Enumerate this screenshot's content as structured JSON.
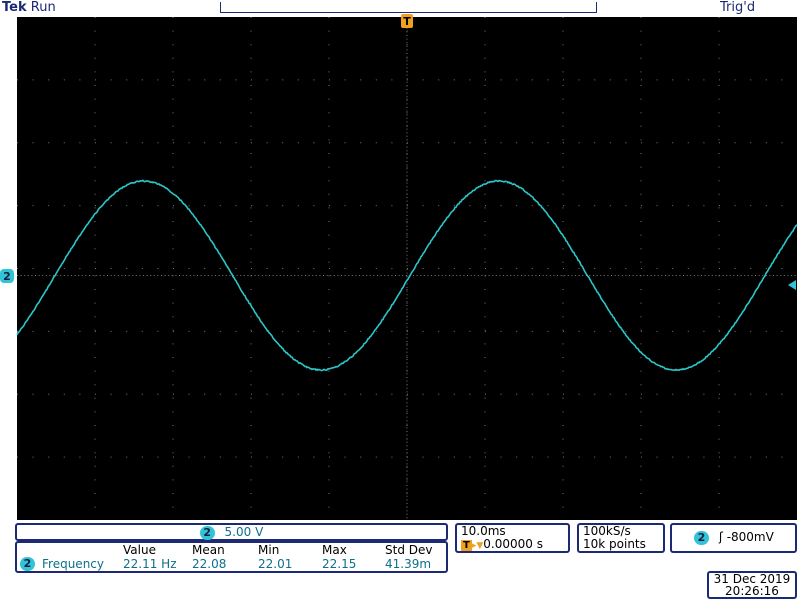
{
  "header": {
    "brand": "Tek",
    "status": "Run",
    "trigger_status": "Trig'd"
  },
  "trigger_marker": "T",
  "channel": {
    "number": "2",
    "scale": "5.00 V"
  },
  "measurement": {
    "columns": [
      "Value",
      "Mean",
      "Min",
      "Max",
      "Std Dev"
    ],
    "channel": "2",
    "name": "Frequency",
    "values": [
      "22.11 Hz",
      "22.08",
      "22.01",
      "22.15",
      "41.39m"
    ]
  },
  "timebase": {
    "scale": "10.0ms",
    "position": "0.00000 s"
  },
  "acquisition": {
    "sample_rate": "100kS/s",
    "record_length": "10k points"
  },
  "trigger": {
    "channel": "2",
    "level": "-800mV"
  },
  "datetime": {
    "date": "31 Dec 2019",
    "time": "20:26:16"
  }
}
